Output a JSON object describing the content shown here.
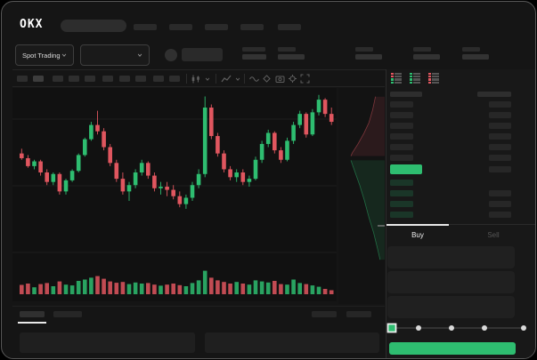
{
  "brand": {
    "logo_text": "OKX"
  },
  "header": {
    "nav_item_count": 5
  },
  "subheader": {
    "market_selector_label": "Spot Trading",
    "ticker_stat_count": 5
  },
  "chart_toolbar": {
    "interval_count": 10,
    "active_interval_index": 1,
    "icons": [
      "interval-menu",
      "chevron-down",
      "chart-type",
      "chevron-down",
      "indicator-wave",
      "draw-brush",
      "camera-snapshot",
      "settings-gear",
      "fullscreen"
    ]
  },
  "orderbook": {
    "view_modes": [
      "book-combined",
      "book-bids",
      "book-asks"
    ],
    "ask_row_count": 6,
    "bid_rows_right_column": [
      false,
      true,
      true,
      true
    ],
    "colors": {
      "ask_placeholder": "#272727",
      "bid_placeholder": "#1a3628",
      "price_highlight": "#2ebd70"
    }
  },
  "trade_panel": {
    "tabs": [
      {
        "label": "Buy",
        "active": true
      },
      {
        "label": "Sell",
        "active": false
      }
    ],
    "input_count": 3,
    "slider_stops": 5,
    "active_stop_index": 0,
    "submit_color": "#2ebd70"
  },
  "bottom_bar": {
    "tab_count": 2,
    "active_tab_index": 0,
    "right_block_count": 2,
    "panel_count": 2
  },
  "colors": {
    "up": "#2ebd70",
    "down": "#e0565f",
    "window_bg": "#151515"
  },
  "chart_data": [
    {
      "type": "candlestick",
      "title": "",
      "note": "No axis labels visible; prices normalized to 0-100 scale estimated from pixels. Volume sub-pane below candles.",
      "price_scale": [
        0,
        100
      ],
      "up_color": "#2ebd70",
      "down_color": "#e0565f",
      "grid": true,
      "candles": [
        [
          62,
          65,
          58,
          59
        ],
        [
          59,
          61,
          53,
          54
        ],
        [
          54,
          58,
          52,
          57
        ],
        [
          57,
          58,
          48,
          50
        ],
        [
          50,
          52,
          42,
          44
        ],
        [
          44,
          50,
          42,
          49
        ],
        [
          49,
          50,
          36,
          38
        ],
        [
          38,
          46,
          36,
          45
        ],
        [
          45,
          52,
          44,
          51
        ],
        [
          51,
          62,
          50,
          61
        ],
        [
          61,
          72,
          60,
          71
        ],
        [
          71,
          82,
          70,
          80
        ],
        [
          80,
          89,
          74,
          76
        ],
        [
          76,
          78,
          64,
          66
        ],
        [
          66,
          68,
          54,
          56
        ],
        [
          56,
          58,
          44,
          46
        ],
        [
          46,
          50,
          36,
          38
        ],
        [
          38,
          44,
          32,
          42
        ],
        [
          42,
          52,
          40,
          50
        ],
        [
          50,
          58,
          48,
          56
        ],
        [
          56,
          57,
          46,
          48
        ],
        [
          48,
          50,
          38,
          40
        ],
        [
          40,
          44,
          36,
          41
        ],
        [
          41,
          44,
          35,
          39
        ],
        [
          39,
          42,
          33,
          35
        ],
        [
          35,
          38,
          28,
          30
        ],
        [
          30,
          36,
          27,
          34
        ],
        [
          34,
          44,
          32,
          42
        ],
        [
          42,
          52,
          40,
          49
        ],
        [
          49,
          98,
          47,
          91
        ],
        [
          91,
          93,
          71,
          73
        ],
        [
          73,
          75,
          60,
          62
        ],
        [
          62,
          64,
          50,
          52
        ],
        [
          52,
          54,
          45,
          47
        ],
        [
          47,
          52,
          44,
          50
        ],
        [
          50,
          52,
          42,
          44
        ],
        [
          44,
          48,
          41,
          46
        ],
        [
          46,
          60,
          45,
          58
        ],
        [
          58,
          70,
          56,
          68
        ],
        [
          68,
          77,
          66,
          75
        ],
        [
          75,
          76,
          62,
          64
        ],
        [
          64,
          66,
          56,
          58
        ],
        [
          58,
          72,
          57,
          70
        ],
        [
          70,
          82,
          68,
          80
        ],
        [
          80,
          89,
          78,
          87
        ],
        [
          87,
          88,
          72,
          74
        ],
        [
          74,
          90,
          73,
          88
        ],
        [
          88,
          99,
          86,
          96
        ],
        [
          96,
          97,
          85,
          87
        ],
        [
          87,
          91,
          80,
          82
        ]
      ],
      "volume": [
        35,
        40,
        26,
        38,
        42,
        30,
        48,
        36,
        33,
        50,
        55,
        62,
        68,
        58,
        48,
        43,
        46,
        38,
        44,
        40,
        42,
        36,
        32,
        36,
        40,
        34,
        30,
        42,
        52,
        88,
        62,
        52,
        46,
        40,
        46,
        40,
        36,
        52,
        48,
        44,
        50,
        38,
        36,
        55,
        42,
        38,
        33,
        28,
        20,
        15
      ]
    },
    {
      "type": "area",
      "name": "orderbook-depth (vertical)",
      "note": "Depth wedges beside chart; curves normalized 0-1 of pane, filled to right edge.",
      "asks_curve": [
        [
          0.8,
          0.04
        ],
        [
          0.74,
          0.1
        ],
        [
          0.66,
          0.16
        ],
        [
          0.55,
          0.21
        ],
        [
          0.42,
          0.26
        ],
        [
          0.3,
          0.3
        ],
        [
          0.27,
          0.315
        ]
      ],
      "bids_curve": [
        [
          0.27,
          0.335
        ],
        [
          0.36,
          0.39
        ],
        [
          0.46,
          0.45
        ],
        [
          0.56,
          0.52
        ],
        [
          0.66,
          0.6
        ],
        [
          0.76,
          0.67
        ],
        [
          0.84,
          0.74
        ],
        [
          0.9,
          0.795
        ]
      ],
      "ask_color": "#e0565f",
      "bid_color": "#2ebd70"
    }
  ]
}
